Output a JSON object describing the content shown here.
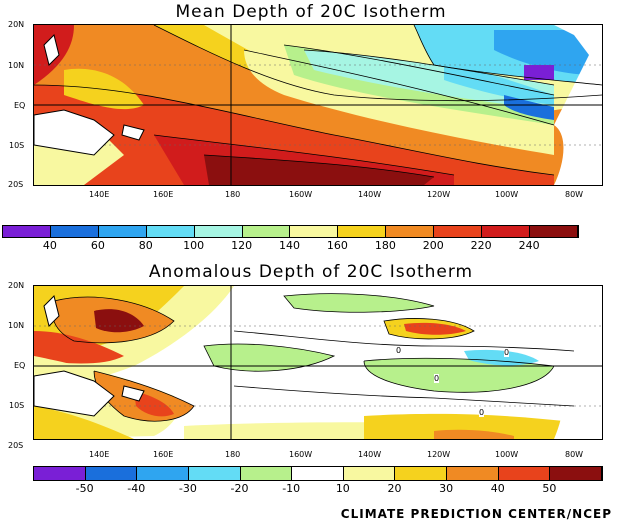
{
  "panels": [
    {
      "title": "Mean Depth of 20C Isotherm",
      "lat_labels": [
        "20N",
        "10N",
        "EQ",
        "10S",
        "20S"
      ],
      "lon_labels": [
        "140E",
        "160E",
        "180",
        "160W",
        "140W",
        "120W",
        "100W",
        "80W"
      ],
      "colorbar": {
        "labels": [
          "40",
          "60",
          "80",
          "100",
          "120",
          "140",
          "160",
          "180",
          "200",
          "220",
          "240"
        ],
        "colors": [
          "#7a1fd6",
          "#1a6fdc",
          "#2fa5f0",
          "#63dcf5",
          "#a6f5e3",
          "#b7f08c",
          "#f8f8a0",
          "#f5d21e",
          "#f08a23",
          "#e8431c",
          "#d11c1c",
          "#8b0f0f"
        ]
      }
    },
    {
      "title": "Anomalous Depth of 20C Isotherm",
      "lat_labels": [
        "20N",
        "10N",
        "EQ",
        "10S",
        "20S"
      ],
      "lon_labels": [
        "140E",
        "160E",
        "180",
        "160W",
        "140W",
        "120W",
        "100W",
        "80W"
      ],
      "contour_labels": [
        "0",
        "0",
        "0",
        "0"
      ],
      "colorbar": {
        "labels": [
          "-50",
          "-40",
          "-30",
          "-20",
          "-10",
          "10",
          "20",
          "30",
          "40",
          "50"
        ],
        "colors": [
          "#7a1fd6",
          "#1a6fdc",
          "#2fa5f0",
          "#63dcf5",
          "#b7f08c",
          "#ffffff",
          "#f8f8a0",
          "#f5d21e",
          "#f08a23",
          "#e8431c",
          "#8b0f0f"
        ]
      }
    }
  ],
  "credit": "CLIMATE PREDICTION CENTER/NCEP"
}
